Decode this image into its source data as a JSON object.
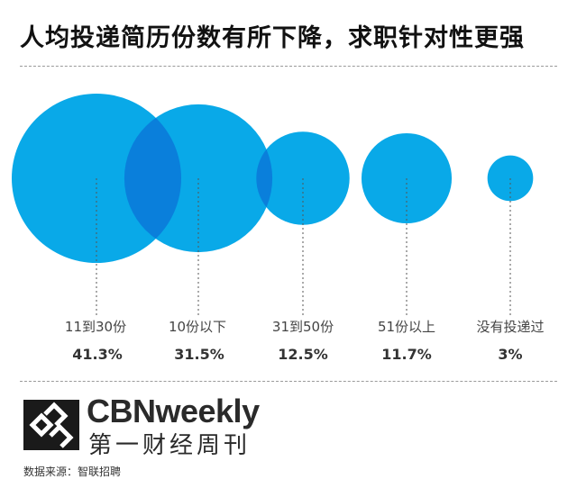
{
  "header": {
    "title": "人均投递简历份数有所下降，求职针对性更强"
  },
  "chart_data": {
    "type": "bubble",
    "title": "人均投递简历份数有所下降，求职针对性更强",
    "categories": [
      "11到30份",
      "10份以下",
      "31到50份",
      "51份以上",
      "没有投递过"
    ],
    "values": [
      41.3,
      31.5,
      12.5,
      11.7,
      3
    ],
    "value_labels": [
      "41.3%",
      "31.5%",
      "12.5%",
      "11.7%",
      "3%"
    ],
    "unit": "%",
    "colors": {
      "bubble": "#09A9E8",
      "overlap": "#0A7FDB"
    }
  },
  "brand": {
    "name_en": "CBNweekly",
    "name_cn": "第一财经周刊"
  },
  "source": {
    "text": "数据来源：智联招聘"
  }
}
